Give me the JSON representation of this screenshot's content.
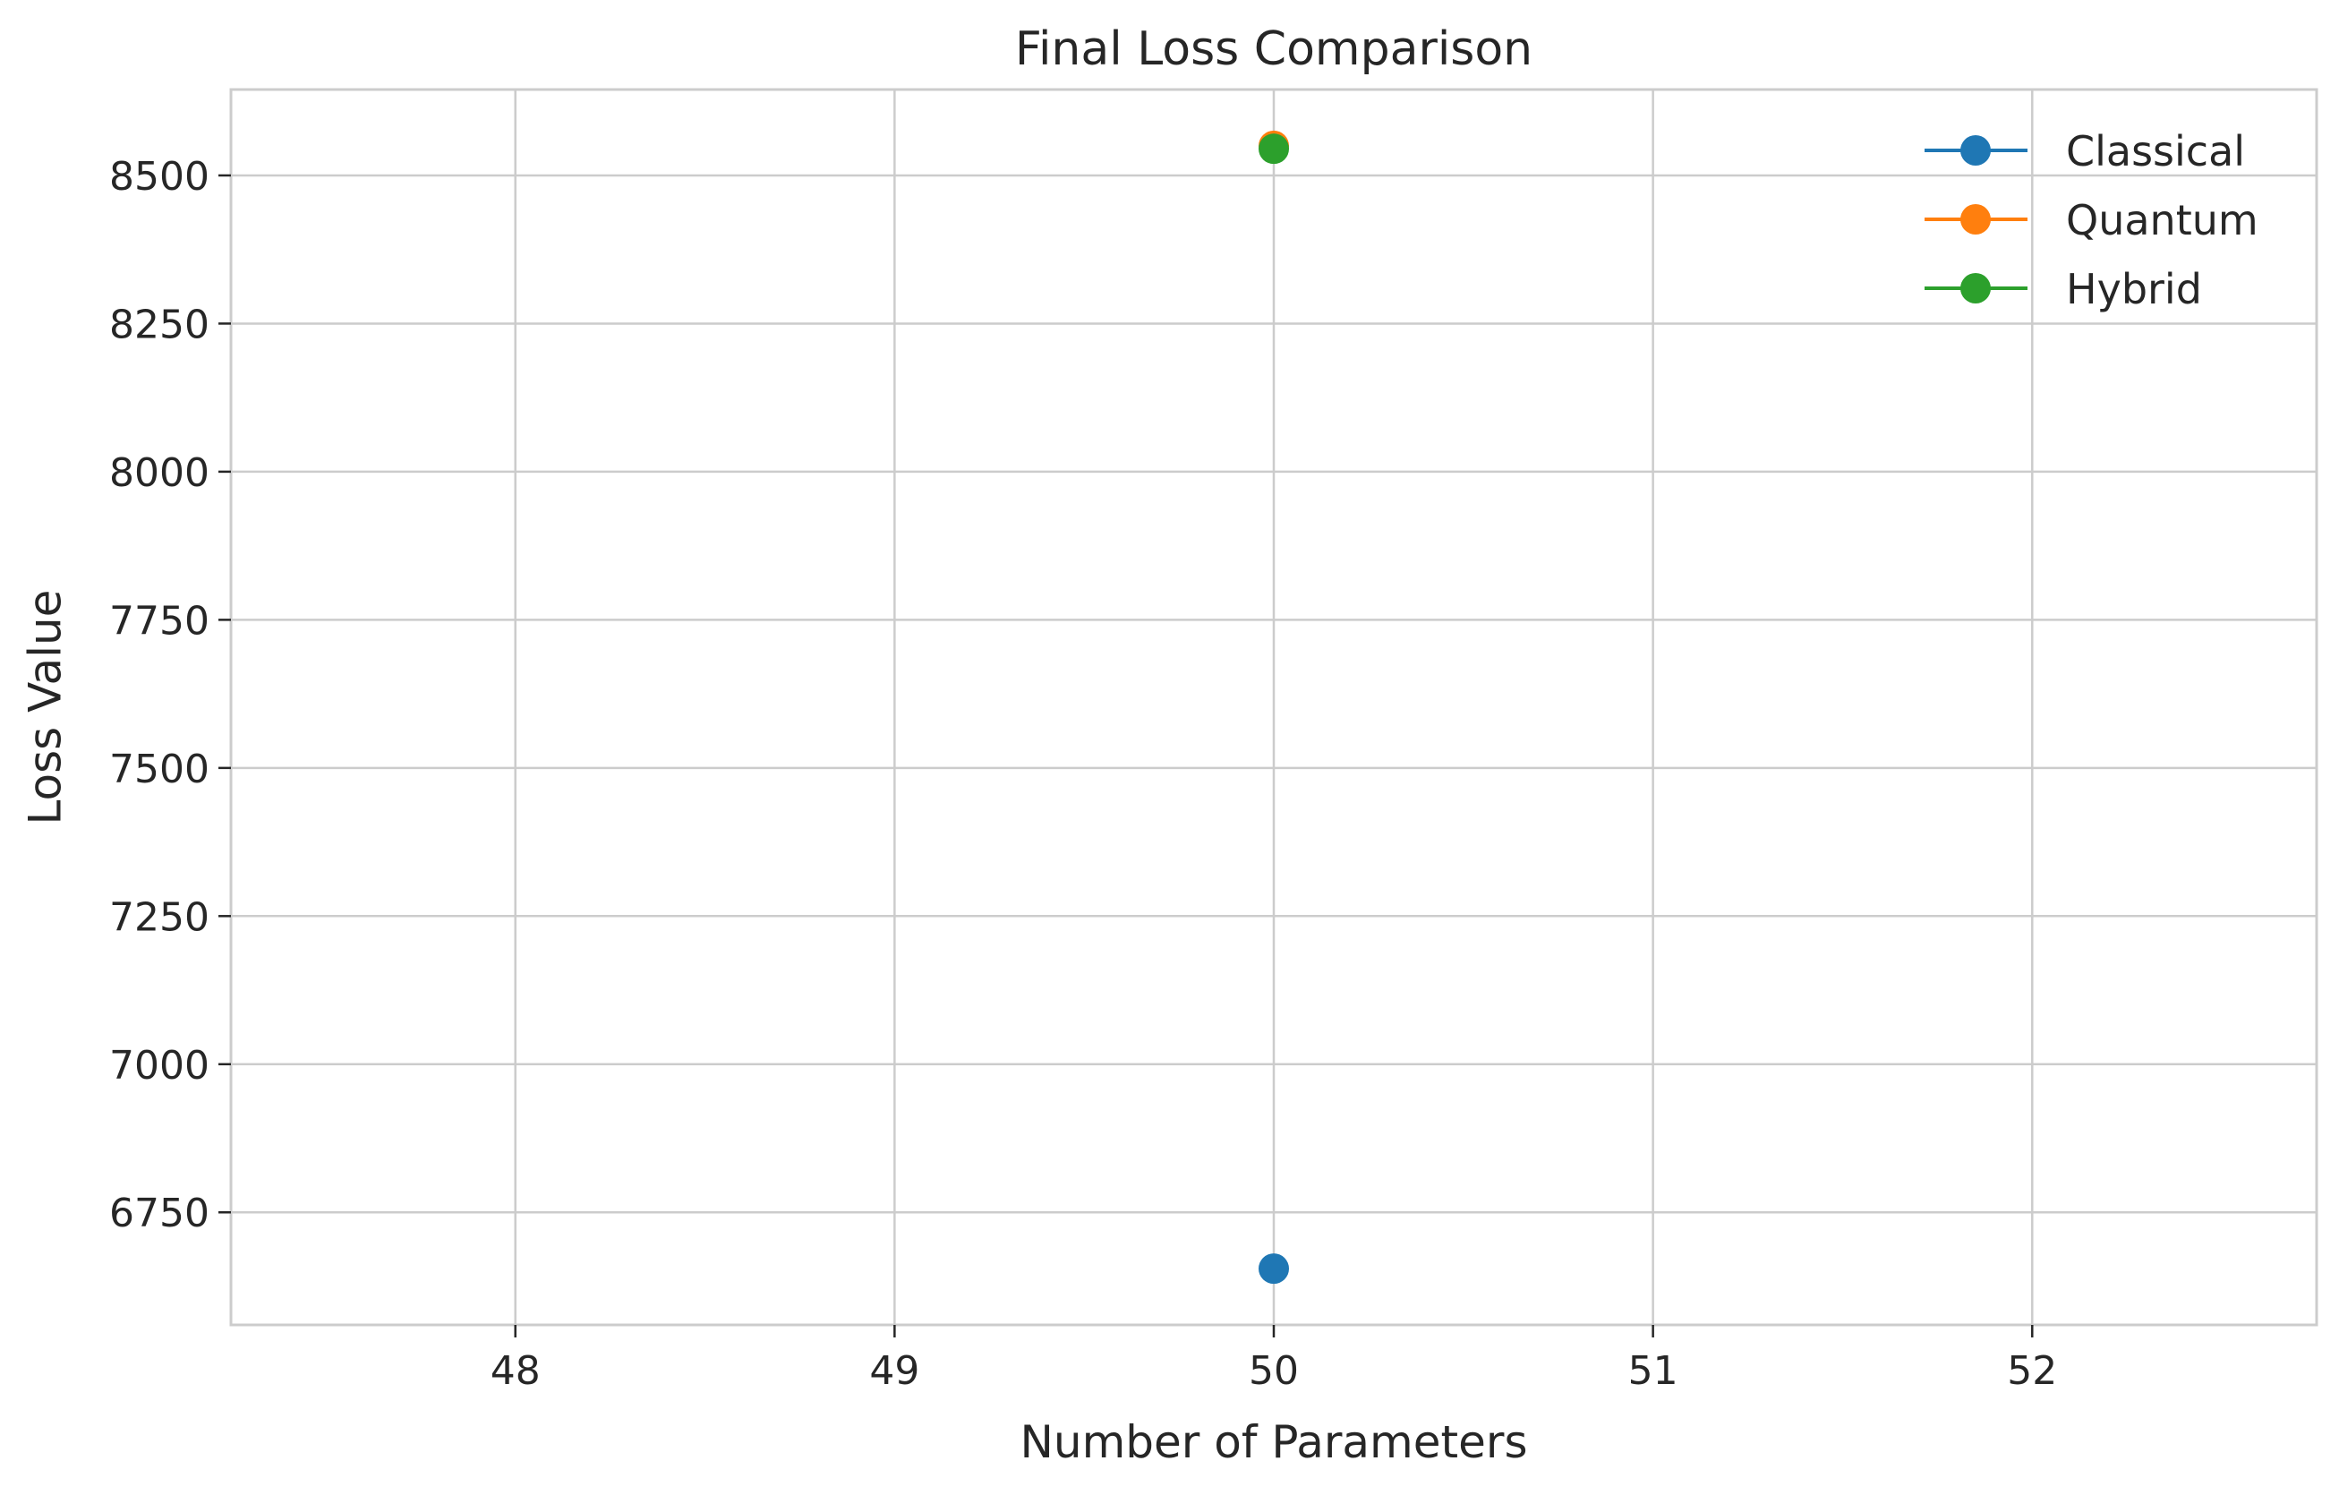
{
  "chart_data": {
    "type": "scatter",
    "title": "Final Loss Comparison",
    "xlabel": "Number of Parameters",
    "ylabel": "Loss Value",
    "xlim": [
      47.25,
      52.75
    ],
    "ylim": [
      6560,
      8645
    ],
    "xticks": [
      48,
      49,
      50,
      51,
      52
    ],
    "yticks": [
      6750,
      7000,
      7250,
      7500,
      7750,
      8000,
      8250,
      8500
    ],
    "grid": true,
    "legend_position": "top-right",
    "series": [
      {
        "name": "Classical",
        "color": "#1f77b4",
        "x": [
          50
        ],
        "y": [
          6655
        ]
      },
      {
        "name": "Quantum",
        "color": "#ff7f0e",
        "x": [
          50
        ],
        "y": [
          8550
        ]
      },
      {
        "name": "Hybrid",
        "color": "#2ca02c",
        "x": [
          50
        ],
        "y": [
          8545
        ]
      }
    ]
  }
}
